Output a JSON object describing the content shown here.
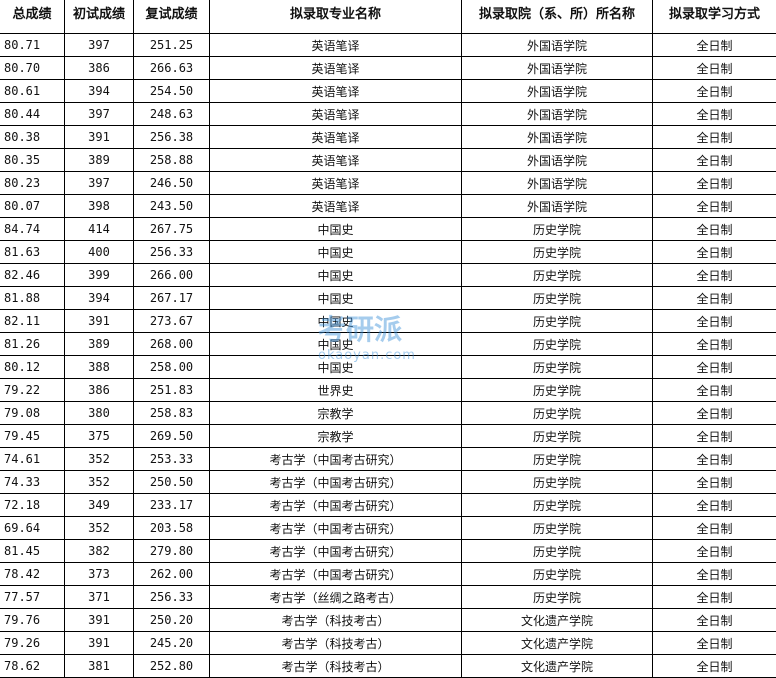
{
  "headers": [
    "总成绩",
    "初试成绩",
    "复试成绩",
    "拟录取专业名称",
    "拟录取院（系、所）所名称",
    "拟录取学习方式"
  ],
  "rows": [
    [
      "80.71",
      "397",
      "251.25",
      "英语笔译",
      "外国语学院",
      "全日制"
    ],
    [
      "80.70",
      "386",
      "266.63",
      "英语笔译",
      "外国语学院",
      "全日制"
    ],
    [
      "80.61",
      "394",
      "254.50",
      "英语笔译",
      "外国语学院",
      "全日制"
    ],
    [
      "80.44",
      "397",
      "248.63",
      "英语笔译",
      "外国语学院",
      "全日制"
    ],
    [
      "80.38",
      "391",
      "256.38",
      "英语笔译",
      "外国语学院",
      "全日制"
    ],
    [
      "80.35",
      "389",
      "258.88",
      "英语笔译",
      "外国语学院",
      "全日制"
    ],
    [
      "80.23",
      "397",
      "246.50",
      "英语笔译",
      "外国语学院",
      "全日制"
    ],
    [
      "80.07",
      "398",
      "243.50",
      "英语笔译",
      "外国语学院",
      "全日制"
    ],
    [
      "84.74",
      "414",
      "267.75",
      "中国史",
      "历史学院",
      "全日制"
    ],
    [
      "81.63",
      "400",
      "256.33",
      "中国史",
      "历史学院",
      "全日制"
    ],
    [
      "82.46",
      "399",
      "266.00",
      "中国史",
      "历史学院",
      "全日制"
    ],
    [
      "81.88",
      "394",
      "267.17",
      "中国史",
      "历史学院",
      "全日制"
    ],
    [
      "82.11",
      "391",
      "273.67",
      "中国史",
      "历史学院",
      "全日制"
    ],
    [
      "81.26",
      "389",
      "268.00",
      "中国史",
      "历史学院",
      "全日制"
    ],
    [
      "80.12",
      "388",
      "258.00",
      "中国史",
      "历史学院",
      "全日制"
    ],
    [
      "79.22",
      "386",
      "251.83",
      "世界史",
      "历史学院",
      "全日制"
    ],
    [
      "79.08",
      "380",
      "258.83",
      "宗教学",
      "历史学院",
      "全日制"
    ],
    [
      "79.45",
      "375",
      "269.50",
      "宗教学",
      "历史学院",
      "全日制"
    ],
    [
      "74.61",
      "352",
      "253.33",
      "考古学（中国考古研究）",
      "历史学院",
      "全日制"
    ],
    [
      "74.33",
      "352",
      "250.50",
      "考古学（中国考古研究）",
      "历史学院",
      "全日制"
    ],
    [
      "72.18",
      "349",
      "233.17",
      "考古学（中国考古研究）",
      "历史学院",
      "全日制"
    ],
    [
      "69.64",
      "352",
      "203.58",
      "考古学（中国考古研究）",
      "历史学院",
      "全日制"
    ],
    [
      "81.45",
      "382",
      "279.80",
      "考古学（中国考古研究）",
      "历史学院",
      "全日制"
    ],
    [
      "78.42",
      "373",
      "262.00",
      "考古学（中国考古研究）",
      "历史学院",
      "全日制"
    ],
    [
      "77.57",
      "371",
      "256.33",
      "考古学（丝绸之路考古）",
      "历史学院",
      "全日制"
    ],
    [
      "79.76",
      "391",
      "250.20",
      "考古学（科技考古）",
      "文化遗产学院",
      "全日制"
    ],
    [
      "79.26",
      "391",
      "245.20",
      "考古学（科技考古）",
      "文化遗产学院",
      "全日制"
    ],
    [
      "78.62",
      "381",
      "252.80",
      "考古学（科技考古）",
      "文化遗产学院",
      "全日制"
    ]
  ],
  "watermark": {
    "name": "考研派",
    "url": "okaoyan.com"
  }
}
